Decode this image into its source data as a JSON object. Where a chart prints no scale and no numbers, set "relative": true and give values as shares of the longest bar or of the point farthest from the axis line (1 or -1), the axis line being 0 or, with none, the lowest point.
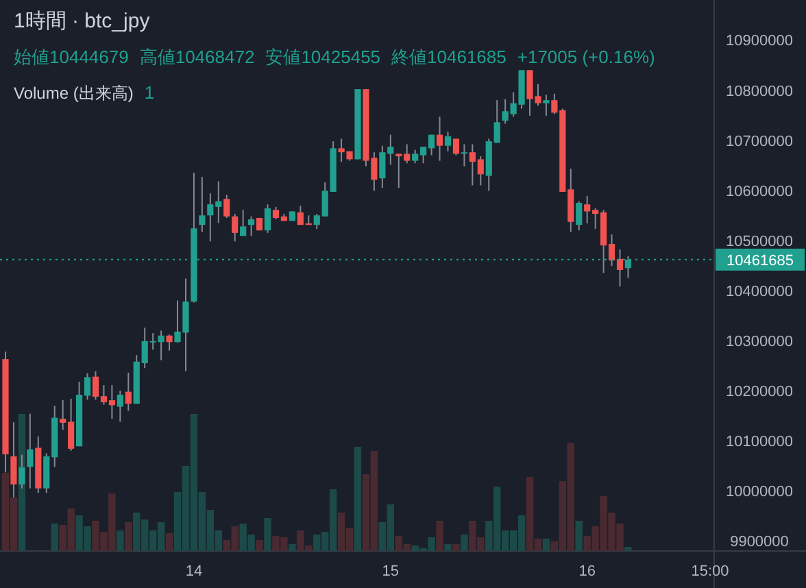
{
  "chart_data": [
    {
      "type": "candlestick",
      "title": "1時間 · btc_jpy",
      "annotations": [
        "始値10444679",
        "高値10468472",
        "安値10425455",
        "終値10461685",
        "+17005 (+0.16%)"
      ],
      "categories": [
        null,
        null,
        null,
        null,
        null,
        null,
        null,
        null,
        null,
        null,
        null,
        null,
        null,
        null,
        null,
        null,
        null,
        null,
        null,
        null,
        null,
        null,
        null,
        "14",
        null,
        null,
        null,
        null,
        null,
        null,
        null,
        null,
        null,
        null,
        null,
        null,
        null,
        null,
        null,
        null,
        null,
        null,
        null,
        null,
        null,
        null,
        null,
        "15",
        null,
        null,
        null,
        null,
        null,
        null,
        null,
        null,
        null,
        null,
        null,
        null,
        null,
        null,
        null,
        null,
        null,
        null,
        null,
        null,
        null,
        null,
        null,
        "16",
        null,
        null,
        null,
        null,
        null,
        null,
        null,
        null,
        null,
        null,
        null,
        null,
        null,
        null,
        "15:00"
      ],
      "ohlc": [
        [
          10263000,
          10278000,
          10037000,
          10073000
        ],
        [
          10069000,
          10137000,
          9987000,
          10013000
        ],
        [
          10013000,
          10072000,
          10005000,
          10047000
        ],
        [
          10048000,
          10154000,
          10005000,
          10083000
        ],
        [
          10086000,
          10109000,
          9996000,
          10005000
        ],
        [
          10005000,
          10075000,
          9996000,
          10069000
        ],
        [
          10067000,
          10170000,
          10048000,
          10146000
        ],
        [
          10144000,
          10181000,
          10122000,
          10136000
        ],
        [
          10138000,
          10184000,
          10080000,
          10084000
        ],
        [
          10089000,
          10218000,
          10089000,
          10192000
        ],
        [
          10190000,
          10235000,
          10182000,
          10227000
        ],
        [
          10228000,
          10239000,
          10182000,
          10188000
        ],
        [
          10189000,
          10211000,
          10172000,
          10177000
        ],
        [
          10181000,
          10211000,
          10144000,
          10171000
        ],
        [
          10168000,
          10200000,
          10138000,
          10192000
        ],
        [
          10198000,
          10236000,
          10160000,
          10174000
        ],
        [
          10174000,
          10271000,
          10174000,
          10258000
        ],
        [
          10255000,
          10326000,
          10245000,
          10299000
        ],
        [
          10297000,
          10315000,
          10282000,
          10299000
        ],
        [
          10297000,
          10320000,
          10261000,
          10310000
        ],
        [
          10310000,
          10312000,
          10280000,
          10297000
        ],
        [
          10297000,
          10380000,
          10296000,
          10318000
        ],
        [
          10316000,
          10424000,
          10239000,
          10378000
        ],
        [
          10378000,
          10635000,
          10376000,
          10524000
        ],
        [
          10531000,
          10627000,
          10517000,
          10550000
        ],
        [
          10550000,
          10594000,
          10498000,
          10572000
        ],
        [
          10567000,
          10618000,
          10535000,
          10578000
        ],
        [
          10583000,
          10591000,
          10545000,
          10548000
        ],
        [
          10548000,
          10553000,
          10498000,
          10515000
        ],
        [
          10509000,
          10561000,
          10509000,
          10528000
        ],
        [
          10531000,
          10548000,
          10509000,
          10542000
        ],
        [
          10545000,
          10545000,
          10520000,
          10520000
        ],
        [
          10520000,
          10572000,
          10515000,
          10564000
        ],
        [
          10561000,
          10567000,
          10542000,
          10545000
        ],
        [
          10548000,
          10553000,
          10539000,
          10539000
        ],
        [
          10539000,
          10558000,
          10539000,
          10558000
        ],
        [
          10556000,
          10569000,
          10531000,
          10531000
        ],
        [
          10534000,
          10550000,
          10531000,
          10531000
        ],
        [
          10531000,
          10553000,
          10523000,
          10550000
        ],
        [
          10548000,
          10616000,
          10548000,
          10599000
        ],
        [
          10597000,
          10698000,
          10597000,
          10684000
        ],
        [
          10684000,
          10703000,
          10657000,
          10676000
        ],
        [
          10678000,
          10678000,
          10659000,
          10662000
        ],
        [
          10662000,
          10802000,
          10662000,
          10802000
        ],
        [
          10802000,
          10802000,
          10648000,
          10659000
        ],
        [
          10665000,
          10676000,
          10599000,
          10621000
        ],
        [
          10624000,
          10689000,
          10605000,
          10676000
        ],
        [
          10673000,
          10711000,
          10651000,
          10687000
        ],
        [
          10673000,
          10673000,
          10605000,
          10668000
        ],
        [
          10673000,
          10692000,
          10654000,
          10659000
        ],
        [
          10659000,
          10681000,
          10654000,
          10673000
        ],
        [
          10670000,
          10687000,
          10654000,
          10687000
        ],
        [
          10684000,
          10711000,
          10670000,
          10711000
        ],
        [
          10711000,
          10747000,
          10659000,
          10689000
        ],
        [
          10689000,
          10717000,
          10678000,
          10708000
        ],
        [
          10703000,
          10703000,
          10670000,
          10673000
        ],
        [
          10674000,
          10692000,
          10648000,
          10676000
        ],
        [
          10676000,
          10692000,
          10610000,
          10657000
        ],
        [
          10662000,
          10668000,
          10610000,
          10632000
        ],
        [
          10629000,
          10703000,
          10599000,
          10698000
        ],
        [
          10695000,
          10780000,
          10695000,
          10736000
        ],
        [
          10739000,
          10782000,
          10733000,
          10758000
        ],
        [
          10752000,
          10796000,
          10747000,
          10774000
        ],
        [
          10771000,
          10840000,
          10763000,
          10840000
        ],
        [
          10840000,
          10840000,
          10749000,
          10782000
        ],
        [
          10788000,
          10812000,
          10769000,
          10774000
        ],
        [
          10774000,
          10791000,
          10749000,
          10780000
        ],
        [
          10780000,
          10793000,
          10752000,
          10755000
        ],
        [
          10760000,
          10763000,
          10597000,
          10597000
        ],
        [
          10602000,
          10643000,
          10517000,
          10537000
        ],
        [
          10531000,
          10578000,
          10520000,
          10575000
        ],
        [
          10572000,
          10589000,
          10534000,
          10558000
        ],
        [
          10561000,
          10564000,
          10523000,
          10553000
        ],
        [
          10556000,
          10561000,
          10435000,
          10490000
        ],
        [
          10493000,
          10512000,
          10449000,
          10460000
        ],
        [
          10463000,
          10482000,
          10408000,
          10441000
        ],
        [
          10444679,
          10468472,
          10425455,
          10461685
        ],
        null,
        null,
        null,
        null,
        null,
        null,
        null,
        null,
        null,
        null
      ],
      "colors": [
        "#f05350",
        "#f05350",
        "#22a08f",
        "#22a08f",
        "#f05350",
        "#22a08f",
        "#22a08f",
        "#f05350",
        "#f05350",
        "#22a08f",
        "#22a08f",
        "#f05350",
        "#f05350",
        "#f05350",
        "#22a08f",
        "#f05350",
        "#22a08f",
        "#22a08f",
        "#22a08f",
        "#22a08f",
        "#f05350",
        "#22a08f",
        "#22a08f",
        "#22a08f",
        "#22a08f",
        "#22a08f",
        "#22a08f",
        "#f05350",
        "#f05350",
        "#22a08f",
        "#22a08f",
        "#f05350",
        "#22a08f",
        "#f05350",
        "#f05350",
        "#22a08f",
        "#f05350",
        "#f05350",
        "#22a08f",
        "#22a08f",
        "#22a08f",
        "#f05350",
        "#f05350",
        "#22a08f",
        "#f05350",
        "#f05350",
        "#22a08f",
        "#22a08f",
        "#f05350",
        "#f05350",
        "#22a08f",
        "#22a08f",
        "#22a08f",
        "#f05350",
        "#22a08f",
        "#f05350",
        "#22a08f",
        "#f05350",
        "#f05350",
        "#22a08f",
        "#22a08f",
        "#22a08f",
        "#22a08f",
        "#22a08f",
        "#f05350",
        "#f05350",
        "#22a08f",
        "#f05350",
        "#f05350",
        "#f05350",
        "#22a08f",
        "#f05350",
        "#f05350",
        "#f05350",
        "#f05350",
        "#f05350",
        "#22a08f",
        null,
        null,
        null,
        null,
        null,
        null,
        null,
        null,
        null,
        null
      ],
      "ylim": [
        9880000,
        10980000
      ],
      "yticks": [
        9900000,
        10000000,
        10100000,
        10200000,
        10300000,
        10400000,
        10500000,
        10600000,
        10700000,
        10800000,
        10900000
      ],
      "ref_lines": [
        {
          "axis": "y",
          "value": 10461685,
          "label": "10461685",
          "color": "#22a08f",
          "line_style": "dotted"
        }
      ]
    },
    {
      "type": "bar",
      "title": "Volume (出来高)",
      "relative": true,
      "annotations": [
        "1"
      ],
      "categories": [
        null,
        null,
        null,
        null,
        null,
        null,
        null,
        null,
        null,
        null,
        null,
        null,
        null,
        null,
        null,
        null,
        null,
        null,
        null,
        null,
        null,
        null,
        null,
        null,
        null,
        null,
        null,
        null,
        null,
        null,
        null,
        null,
        null,
        null,
        null,
        null,
        null,
        null,
        null,
        null,
        null,
        null,
        null,
        null,
        null,
        null,
        null,
        null,
        null,
        null,
        null,
        null,
        null,
        null,
        null,
        null,
        null,
        null,
        null,
        null,
        null,
        null,
        null,
        null,
        null,
        null,
        null,
        null,
        null,
        null,
        null,
        null,
        null,
        null,
        null,
        null,
        null,
        null,
        null,
        null,
        null,
        null,
        null,
        null,
        null,
        null,
        null
      ],
      "values": [
        0.57,
        0.39,
        1.0,
        null,
        null,
        null,
        0.2,
        0.19,
        0.31,
        0.26,
        0.18,
        0.22,
        0.14,
        0.42,
        0.15,
        0.21,
        0.28,
        0.23,
        0.15,
        0.21,
        0.13,
        0.43,
        0.62,
        1.0,
        0.43,
        0.3,
        0.15,
        0.08,
        0.18,
        0.2,
        0.12,
        0.08,
        0.24,
        0.11,
        0.1,
        0.05,
        0.15,
        0.04,
        0.12,
        0.14,
        0.45,
        0.28,
        0.17,
        0.76,
        0.56,
        0.73,
        0.21,
        0.34,
        0.11,
        0.05,
        0.04,
        0.02,
        0.1,
        0.22,
        0.05,
        0.05,
        0.12,
        0.22,
        0.1,
        0.22,
        0.47,
        0.15,
        0.15,
        0.26,
        0.54,
        0.09,
        0.09,
        0.07,
        0.51,
        0.79,
        0.22,
        0.11,
        0.18,
        0.4,
        0.28,
        0.2,
        0.03,
        null,
        null,
        null,
        null,
        null,
        null,
        null,
        null,
        null,
        null
      ],
      "colors": [
        "#4a2a31",
        "#4a2a31",
        "#1c4a48",
        "#1c4a48",
        "#4a2a31",
        "#1c4a48",
        "#1c4a48",
        "#4a2a31",
        "#4a2a31",
        "#1c4a48",
        "#1c4a48",
        "#4a2a31",
        "#4a2a31",
        "#4a2a31",
        "#1c4a48",
        "#4a2a31",
        "#1c4a48",
        "#1c4a48",
        "#1c4a48",
        "#1c4a48",
        "#4a2a31",
        "#1c4a48",
        "#1c4a48",
        "#1c4a48",
        "#1c4a48",
        "#1c4a48",
        "#1c4a48",
        "#4a2a31",
        "#4a2a31",
        "#1c4a48",
        "#1c4a48",
        "#4a2a31",
        "#1c4a48",
        "#4a2a31",
        "#4a2a31",
        "#1c4a48",
        "#4a2a31",
        "#4a2a31",
        "#1c4a48",
        "#1c4a48",
        "#1c4a48",
        "#4a2a31",
        "#4a2a31",
        "#1c4a48",
        "#4a2a31",
        "#4a2a31",
        "#1c4a48",
        "#1c4a48",
        "#4a2a31",
        "#4a2a31",
        "#1c4a48",
        "#1c4a48",
        "#1c4a48",
        "#4a2a31",
        "#1c4a48",
        "#4a2a31",
        "#1c4a48",
        "#4a2a31",
        "#4a2a31",
        "#1c4a48",
        "#1c4a48",
        "#1c4a48",
        "#1c4a48",
        "#1c4a48",
        "#4a2a31",
        "#4a2a31",
        "#1c4a48",
        "#4a2a31",
        "#4a2a31",
        "#4a2a31",
        "#1c4a48",
        "#4a2a31",
        "#4a2a31",
        "#4a2a31",
        "#4a2a31",
        "#4a2a31",
        "#1c4a48",
        null,
        null,
        null,
        null,
        null,
        null,
        null,
        null,
        null,
        null
      ]
    }
  ]
}
